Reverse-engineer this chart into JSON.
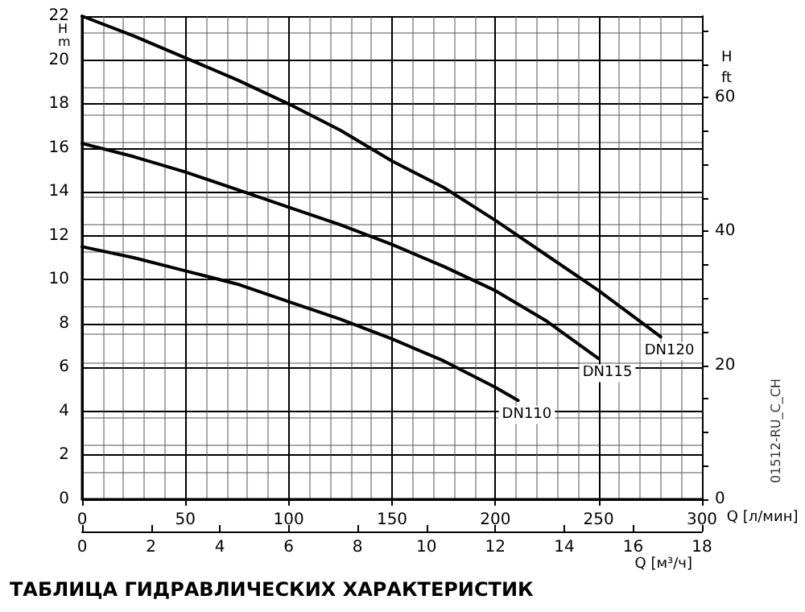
{
  "chart_data": {
    "type": "line",
    "xlabel": "Q [л/мин]",
    "ylabel": "H m",
    "y2label": "H ft",
    "x2label": "Q [м³/ч]",
    "xlim": [
      0,
      300
    ],
    "xticks": [
      0,
      50,
      100,
      150,
      200,
      250,
      300
    ],
    "ylim": [
      0,
      22
    ],
    "yticks": [
      0,
      2,
      4,
      6,
      8,
      10,
      12,
      14,
      16,
      18,
      20,
      22
    ],
    "y2lim": [
      0,
      72.18
    ],
    "y2ticks": [
      0,
      {
        "value": 5,
        "label": null
      },
      {
        "value": 10,
        "label": null
      },
      {
        "value": 15,
        "label": null
      },
      20,
      {
        "value": 25,
        "label": null
      },
      {
        "value": 30,
        "label": null
      },
      {
        "value": 35,
        "label": null
      },
      40,
      {
        "value": 45,
        "label": null
      },
      {
        "value": 50,
        "label": null
      },
      {
        "value": 55,
        "label": null
      },
      60,
      {
        "value": 65,
        "label": null
      },
      {
        "value": 70,
        "label": null
      }
    ],
    "x2lim": [
      0,
      18
    ],
    "x2ticks": [
      0,
      2,
      4,
      6,
      8,
      10,
      12,
      14,
      16,
      18
    ],
    "grid": true,
    "legend": false,
    "marker": "none",
    "line_style": "solid",
    "series": [
      {
        "name": "DN120",
        "color": "#000000",
        "x": [
          0,
          25,
          50,
          75,
          100,
          125,
          150,
          175,
          200,
          225,
          250,
          280
        ],
        "values": [
          22,
          21.1,
          20.1,
          19.1,
          18,
          16.8,
          15.4,
          14.2,
          12.7,
          11.1,
          9.5,
          7.4
        ]
      },
      {
        "name": "DN115",
        "color": "#000000",
        "x": [
          0,
          25,
          50,
          75,
          100,
          125,
          150,
          175,
          200,
          225,
          250
        ],
        "values": [
          16.2,
          15.6,
          14.9,
          14.1,
          13.3,
          12.5,
          11.6,
          10.6,
          9.5,
          8.1,
          6.4
        ]
      },
      {
        "name": "DN110",
        "color": "#000000",
        "x": [
          0,
          25,
          50,
          75,
          100,
          125,
          150,
          175,
          200,
          211
        ],
        "values": [
          11.5,
          11,
          10.4,
          9.8,
          9,
          8.2,
          7.3,
          6.3,
          5.1,
          4.5
        ]
      }
    ],
    "annotations": [
      "01512-RU_C_CH",
      "ТАБЛИЦА ГИДРАВЛИЧЕСКИХ ХАРАКТЕРИСТИК"
    ]
  }
}
